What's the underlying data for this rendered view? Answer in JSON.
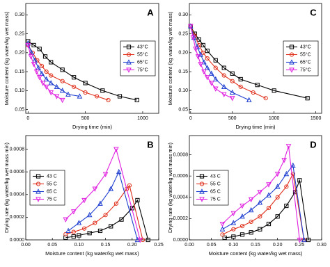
{
  "chart_data": [
    {
      "type": "line",
      "panel": "A",
      "xlabel": "Drying time (min)",
      "ylabel": "Moisture content (kg water/kg wet mass)",
      "xlim": [
        -20,
        1140
      ],
      "ylim": [
        0.04,
        0.33
      ],
      "xticks": [
        0,
        500,
        1000
      ],
      "yticks": [
        0.05,
        {
          "value": 0.1,
          "label": "0.10"
        },
        0.15,
        {
          "value": 0.2,
          "label": "0.20"
        },
        0.25,
        {
          "value": 0.3,
          "label": "0.30"
        }
      ],
      "legend": "center right",
      "series": [
        {
          "name": "43°C",
          "color": "#000000",
          "marker": "square",
          "x": [
            0,
            50,
            100,
            150,
            200,
            300,
            400,
            500,
            650,
            800,
            950
          ],
          "values": [
            0.23,
            0.22,
            0.21,
            0.19,
            0.175,
            0.155,
            0.135,
            0.12,
            0.1,
            0.085,
            0.075
          ]
        },
        {
          "name": "55°C",
          "color": "#e0301c",
          "marker": "circle",
          "x": [
            0,
            40,
            80,
            120,
            160,
            200,
            300,
            400,
            500,
            600,
            700
          ],
          "values": [
            0.22,
            0.2,
            0.18,
            0.165,
            0.15,
            0.14,
            0.125,
            0.11,
            0.095,
            0.085,
            0.075
          ]
        },
        {
          "name": "65°C",
          "color": "#1f3fd0",
          "marker": "triangle-up",
          "x": [
            0,
            30,
            60,
            90,
            120,
            160,
            200,
            250,
            300,
            350,
            450
          ],
          "values": [
            0.225,
            0.2,
            0.18,
            0.16,
            0.145,
            0.13,
            0.12,
            0.11,
            0.1,
            0.09,
            0.085
          ]
        },
        {
          "name": "75°C",
          "color": "#e020e0",
          "marker": "triangle-down",
          "x": [
            0,
            25,
            50,
            75,
            100,
            130,
            160,
            200,
            250,
            300
          ],
          "values": [
            0.22,
            0.19,
            0.17,
            0.15,
            0.135,
            0.12,
            0.11,
            0.095,
            0.085,
            0.075
          ]
        }
      ]
    },
    {
      "type": "line",
      "panel": "C",
      "xlabel": "Drying time (min)",
      "ylabel": "Moisture content (kg water/kg wet mass)",
      "xlim": [
        -15,
        1570
      ],
      "ylim": [
        0.04,
        0.33
      ],
      "xticks": [
        0,
        500,
        1000,
        1500
      ],
      "yticks": [
        0.05,
        {
          "value": 0.1,
          "label": "0.10"
        },
        0.15,
        {
          "value": 0.2,
          "label": "0.20"
        },
        0.25,
        {
          "value": 0.3,
          "label": "0.30"
        }
      ],
      "legend": "center right",
      "series": [
        {
          "name": "43°C",
          "color": "#000000",
          "marker": "square",
          "x": [
            0,
            50,
            100,
            150,
            200,
            300,
            400,
            500,
            600,
            800,
            1000,
            1400
          ],
          "values": [
            0.27,
            0.25,
            0.235,
            0.22,
            0.205,
            0.18,
            0.16,
            0.145,
            0.13,
            0.115,
            0.1,
            0.08
          ]
        },
        {
          "name": "55°C",
          "color": "#e0301c",
          "marker": "circle",
          "x": [
            0,
            50,
            100,
            150,
            200,
            300,
            400,
            500,
            600,
            750,
            900
          ],
          "values": [
            0.27,
            0.245,
            0.22,
            0.2,
            0.185,
            0.16,
            0.14,
            0.125,
            0.11,
            0.095,
            0.08
          ]
        },
        {
          "name": "65°C",
          "color": "#1f3fd0",
          "marker": "triangle-up",
          "x": [
            0,
            40,
            80,
            120,
            160,
            200,
            250,
            300,
            400,
            500,
            700
          ],
          "values": [
            0.27,
            0.24,
            0.215,
            0.195,
            0.175,
            0.16,
            0.145,
            0.13,
            0.11,
            0.095,
            0.075
          ]
        },
        {
          "name": "75°C",
          "color": "#e020e0",
          "marker": "triangle-down",
          "x": [
            0,
            30,
            60,
            90,
            120,
            160,
            200,
            250,
            300,
            400,
            500
          ],
          "values": [
            0.27,
            0.24,
            0.21,
            0.19,
            0.17,
            0.15,
            0.135,
            0.12,
            0.105,
            0.09,
            0.08
          ]
        }
      ]
    },
    {
      "type": "line",
      "panel": "B",
      "xlabel": "Moisture content (kg water/kg wet mass)",
      "ylabel": "Drying rate (kg water/kg wet mass min)",
      "xlim": [
        0,
        0.25
      ],
      "ylim": [
        0,
        0.00092
      ],
      "xticks": [
        {
          "value": 0,
          "label": "0.00"
        },
        0.05,
        {
          "value": 0.1,
          "label": "0.10"
        },
        0.15,
        {
          "value": 0.2,
          "label": "0.20"
        },
        0.25
      ],
      "yticks": [
        {
          "value": 0,
          "label": "0.0000"
        },
        0.0002,
        0.0004,
        0.0006,
        0.0008
      ],
      "legend": "center left",
      "series": [
        {
          "name": "43 C",
          "color": "#000000",
          "marker": "square",
          "x": [
            0.075,
            0.09,
            0.1,
            0.12,
            0.14,
            0.16,
            0.18,
            0.2,
            0.21,
            0.23
          ],
          "values": [
            2e-05,
            3e-05,
            4e-05,
            6e-05,
            8e-05,
            0.00012,
            0.00018,
            0.00028,
            0.00035,
            0
          ]
        },
        {
          "name": "55 C",
          "color": "#e0301c",
          "marker": "circle",
          "x": [
            0.075,
            0.09,
            0.11,
            0.13,
            0.15,
            0.17,
            0.19,
            0.195,
            0.22
          ],
          "values": [
            5e-05,
            7e-05,
            0.0001,
            0.00015,
            0.00022,
            0.00032,
            0.00045,
            0.00048,
            0
          ]
        },
        {
          "name": "65 C",
          "color": "#1f3fd0",
          "marker": "triangle-up",
          "x": [
            0.08,
            0.1,
            0.12,
            0.14,
            0.16,
            0.175,
            0.21
          ],
          "values": [
            8e-05,
            0.00015,
            0.00022,
            0.00032,
            0.00045,
            0.0006,
            0
          ]
        },
        {
          "name": "75 C",
          "color": "#e020e0",
          "marker": "triangle-down",
          "x": [
            0.075,
            0.09,
            0.11,
            0.13,
            0.15,
            0.17,
            0.215
          ],
          "values": [
            0.00018,
            0.00025,
            0.00035,
            0.00045,
            0.00058,
            0.0008,
            0
          ]
        }
      ]
    },
    {
      "type": "line",
      "panel": "D",
      "xlabel": "Moisture content (kg water/kg wet mass)",
      "ylabel": "Drying rate (kg water/kg wet mass min)",
      "xlim": [
        0,
        0.3
      ],
      "ylim": [
        0,
        0.00098
      ],
      "xticks": [
        {
          "value": 0,
          "label": "0.00"
        },
        0.05,
        {
          "value": 0.1,
          "label": "0.10"
        },
        0.15,
        {
          "value": 0.2,
          "label": "0.20"
        },
        0.25,
        {
          "value": 0.3,
          "label": "0.30"
        }
      ],
      "yticks": [
        {
          "value": 0,
          "label": "0.0000"
        },
        0.0002,
        0.0004,
        0.0006,
        0.0008
      ],
      "legend": "center left",
      "series": [
        {
          "name": "43 C",
          "color": "#000000",
          "marker": "square",
          "x": [
            0.08,
            0.1,
            0.12,
            0.14,
            0.16,
            0.18,
            0.2,
            0.22,
            0.24,
            0.25,
            0.27
          ],
          "values": [
            2e-05,
            3e-05,
            5e-05,
            7e-05,
            0.0001,
            0.00015,
            0.00022,
            0.00032,
            0.00045,
            0.00056,
            0
          ]
        },
        {
          "name": "55 C",
          "color": "#e0301c",
          "marker": "circle",
          "x": [
            0.075,
            0.1,
            0.12,
            0.14,
            0.16,
            0.18,
            0.2,
            0.22,
            0.235,
            0.26
          ],
          "values": [
            5e-05,
            0.0001,
            0.00013,
            0.00017,
            0.00022,
            0.0003,
            0.0004,
            0.0005,
            0.00062,
            0
          ]
        },
        {
          "name": "65 C",
          "color": "#1f3fd0",
          "marker": "triangle-up",
          "x": [
            0.075,
            0.1,
            0.12,
            0.14,
            0.16,
            0.18,
            0.2,
            0.22,
            0.235,
            0.26
          ],
          "values": [
            0.0001,
            0.00016,
            0.00022,
            0.00028,
            0.00035,
            0.00042,
            0.0005,
            0.00062,
            0.0007,
            0
          ]
        },
        {
          "name": "75 C",
          "color": "#e020e0",
          "marker": "triangle-down",
          "x": [
            0.075,
            0.1,
            0.12,
            0.14,
            0.16,
            0.18,
            0.2,
            0.215,
            0.225,
            0.25
          ],
          "values": [
            0.00015,
            0.00025,
            0.00032,
            0.00038,
            0.00045,
            0.00052,
            0.00062,
            0.00075,
            0.00088,
            0
          ]
        }
      ]
    }
  ]
}
